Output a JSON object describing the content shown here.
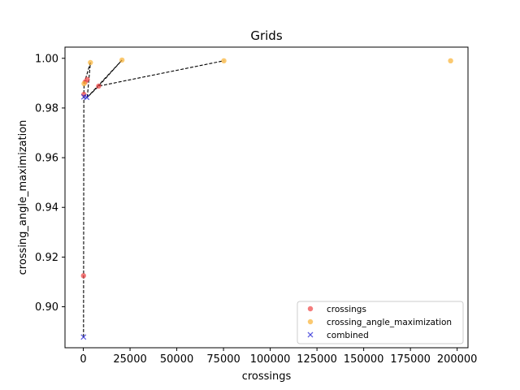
{
  "chart_data": {
    "type": "scatter",
    "title": "Grids",
    "xlabel": "crossings",
    "ylabel": "crossing_angle_maximization",
    "xlim": [
      -9800,
      205800
    ],
    "ylim": [
      0.8835,
      1.0045
    ],
    "xticks": [
      0,
      25000,
      50000,
      75000,
      100000,
      125000,
      150000,
      175000,
      200000
    ],
    "xtick_labels": [
      "0",
      "25000",
      "50000",
      "75000",
      "100000",
      "125000",
      "150000",
      "175000",
      "200000"
    ],
    "yticks": [
      0.9,
      0.92,
      0.94,
      0.96,
      0.98,
      1.0
    ],
    "ytick_labels": [
      "0.90",
      "0.92",
      "0.94",
      "0.96",
      "0.98",
      "1.00"
    ],
    "grid": false,
    "legend_position": "lower-right",
    "series": [
      {
        "name": "crossings",
        "marker": "circle",
        "color": "#ef4444",
        "points": [
          [
            100,
            0.9125
          ],
          [
            300,
            0.9855
          ],
          [
            1000,
            0.9905
          ],
          [
            2100,
            0.9915
          ],
          [
            8200,
            0.9888
          ]
        ]
      },
      {
        "name": "crossing_angle_maximization",
        "marker": "circle",
        "color": "#f9b233",
        "points": [
          [
            400,
            0.9898
          ],
          [
            3800,
            0.9983
          ],
          [
            20700,
            0.9993
          ],
          [
            75200,
            0.999
          ],
          [
            196500,
            0.999
          ]
        ]
      },
      {
        "name": "combined",
        "marker": "x",
        "color": "#2b2bd6",
        "points": [
          [
            100,
            0.8878
          ],
          [
            300,
            0.9845
          ],
          [
            1800,
            0.9843
          ]
        ]
      }
    ],
    "frontier": {
      "style": "dashed",
      "color": "#000000",
      "points": [
        [
          100,
          0.8878
        ],
        [
          300,
          0.9855
        ],
        [
          400,
          0.9898
        ],
        [
          3800,
          0.9983
        ],
        [
          2100,
          0.9843
        ],
        [
          8200,
          0.9888
        ],
        [
          20700,
          0.9993
        ],
        [
          2100,
          0.9843
        ],
        [
          8200,
          0.9888
        ],
        [
          75200,
          0.999
        ]
      ]
    }
  }
}
